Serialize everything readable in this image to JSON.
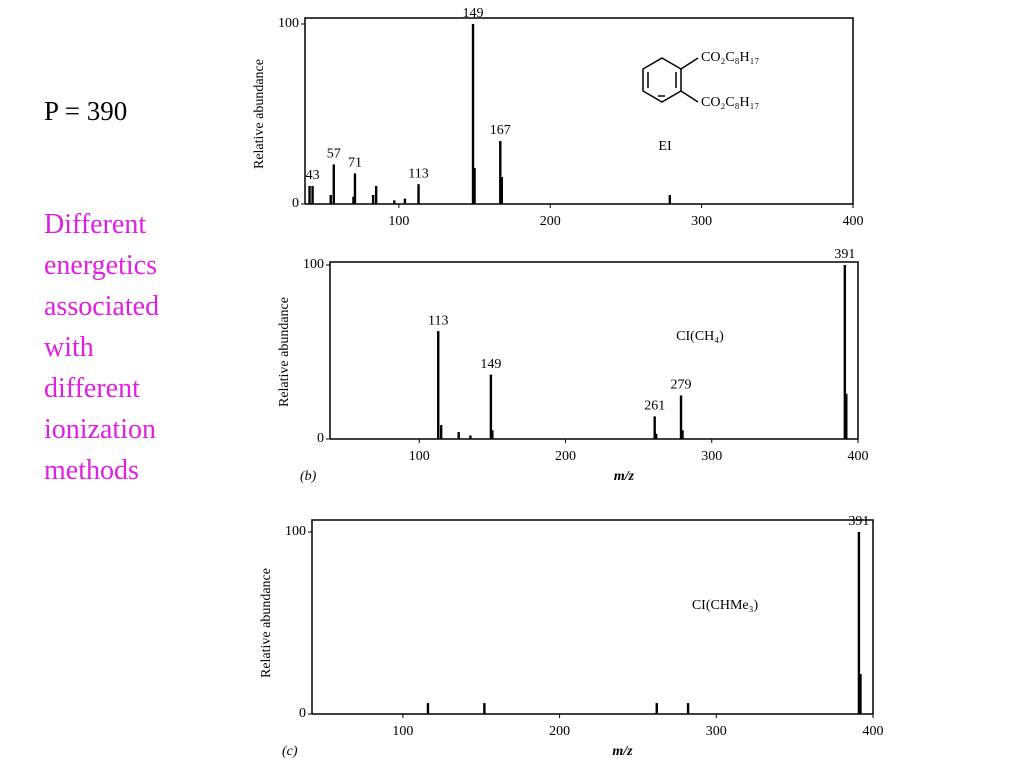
{
  "slide": {
    "heading": "P = 390",
    "note": "Different energetics associated with different ionization methods"
  },
  "chart_data": [
    {
      "type": "bar",
      "annotation": "EI",
      "y_label": "Relative abundance",
      "structure_labels": [
        "CO₂C₈H₁₇",
        "CO₂C₈H₁₇"
      ],
      "x": [
        41,
        43,
        55,
        57,
        70,
        71,
        83,
        85,
        97,
        104,
        113,
        149,
        150,
        167,
        168,
        279
      ],
      "values": [
        10,
        10,
        5,
        22,
        4,
        17,
        5,
        10,
        2,
        3,
        11,
        100,
        20,
        35,
        15,
        5
      ],
      "peak_labels": [
        null,
        "43",
        null,
        "57",
        null,
        "71",
        null,
        null,
        null,
        null,
        "113",
        "149",
        null,
        "167",
        null,
        null
      ],
      "xlim": [
        38,
        400
      ],
      "xticks": [
        100,
        200,
        300,
        400
      ],
      "ylim": [
        0,
        100
      ],
      "yticks": [
        0,
        100
      ],
      "color": "#000000"
    },
    {
      "type": "bar",
      "annotation": "CI(CH₄)",
      "y_label": "Relative abundance",
      "x_label": "m/z",
      "panel": "(b)",
      "x": [
        113,
        115,
        127,
        135,
        149,
        150,
        261,
        262,
        279,
        280,
        391,
        392
      ],
      "values": [
        62,
        8,
        4,
        2,
        37,
        5,
        13,
        3,
        25,
        5,
        100,
        26
      ],
      "peak_labels": [
        "113",
        null,
        null,
        null,
        "149",
        null,
        "261",
        null,
        "279",
        null,
        "391",
        null
      ],
      "xlim": [
        39,
        400
      ],
      "xticks": [
        100,
        200,
        300,
        400
      ],
      "ylim": [
        0,
        100
      ],
      "yticks": [
        0,
        100
      ],
      "color": "#000000"
    },
    {
      "type": "bar",
      "annotation": "CI(CHMe₃)",
      "y_label": "Relative abundance",
      "x_label": "m/z",
      "panel": "(c)",
      "x": [
        116,
        152,
        262,
        282,
        391,
        392
      ],
      "values": [
        6,
        6,
        6,
        6,
        100,
        22
      ],
      "peak_labels": [
        null,
        null,
        null,
        null,
        "391",
        null
      ],
      "xlim": [
        42,
        400
      ],
      "xticks": [
        100,
        200,
        300,
        400
      ],
      "ylim": [
        0,
        100
      ],
      "yticks": [
        0,
        100
      ],
      "color": "#000000"
    }
  ]
}
